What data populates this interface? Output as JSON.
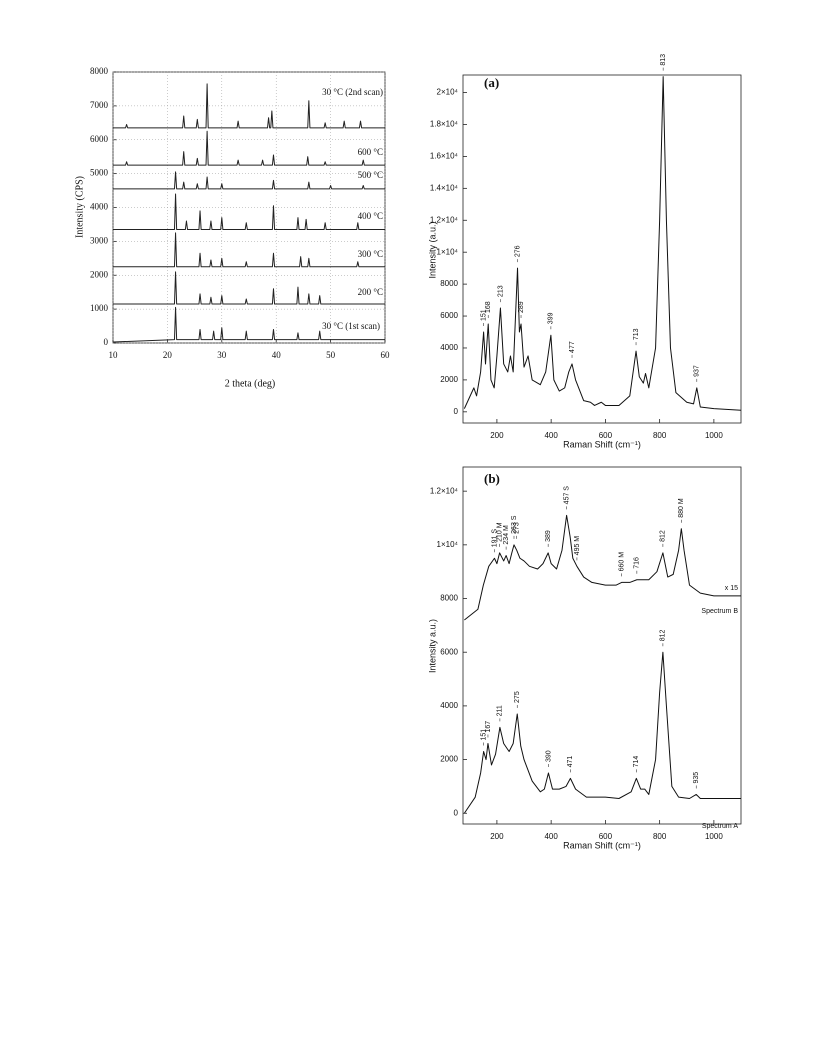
{
  "chart_data": [
    {
      "type": "line",
      "xlabel": "2 theta (deg)",
      "ylabel": "Intensity (CPS)",
      "xlim": [
        10,
        60
      ],
      "xticks": [
        10,
        20,
        30,
        40,
        50,
        60
      ],
      "ylim": [
        0,
        8000
      ],
      "yticks": [
        0,
        1000,
        2000,
        3000,
        4000,
        5000,
        6000,
        7000,
        8000
      ],
      "grid": true,
      "series": [
        {
          "name": "30 °C (2nd scan)",
          "color": "#222",
          "x": [
            10,
            12.3,
            12.5,
            12.7,
            22.8,
            23,
            23.2,
            25.3,
            25.5,
            25.7,
            27.1,
            27.3,
            27.5,
            32.8,
            33,
            33.2,
            38.4,
            38.6,
            38.8,
            39,
            39.2,
            39.4,
            45.8,
            46,
            46.2,
            48.8,
            49,
            49.2,
            52.3,
            52.5,
            52.7,
            55.3,
            55.5,
            55.7,
            60
          ],
          "values": [
            6350,
            6350,
            6450,
            6350,
            6350,
            6700,
            6350,
            6350,
            6600,
            6350,
            6350,
            7650,
            6350,
            6350,
            6550,
            6350,
            6350,
            6650,
            6350,
            6350,
            6850,
            6350,
            6350,
            7150,
            6350,
            6350,
            6500,
            6350,
            6350,
            6550,
            6350,
            6350,
            6550,
            6350,
            6350
          ]
        },
        {
          "name": "600 °C",
          "color": "#222",
          "x": [
            10,
            12.3,
            12.5,
            12.7,
            22.8,
            23,
            23.2,
            25.3,
            25.5,
            25.7,
            27.1,
            27.3,
            27.5,
            32.8,
            33,
            33.2,
            37.3,
            37.5,
            37.7,
            39.3,
            39.5,
            39.7,
            45.6,
            45.8,
            46,
            48.8,
            49,
            49.2,
            55.8,
            56,
            56.2,
            60
          ],
          "values": [
            5250,
            5250,
            5350,
            5250,
            5250,
            5650,
            5250,
            5250,
            5450,
            5250,
            5250,
            6250,
            5250,
            5250,
            5400,
            5250,
            5250,
            5400,
            5250,
            5250,
            5550,
            5250,
            5250,
            5500,
            5250,
            5250,
            5350,
            5250,
            5250,
            5400,
            5250,
            5250
          ]
        },
        {
          "name": "500 °C",
          "color": "#222",
          "x": [
            10,
            21.3,
            21.5,
            21.7,
            22.8,
            23,
            23.2,
            25.3,
            25.5,
            25.7,
            27.1,
            27.3,
            27.5,
            29.8,
            30,
            30.2,
            39.3,
            39.5,
            39.7,
            45.8,
            46,
            46.2,
            49.8,
            50,
            50.2,
            55.8,
            56,
            56.2,
            60
          ],
          "values": [
            4550,
            4550,
            5050,
            4550,
            4550,
            4750,
            4550,
            4550,
            4700,
            4550,
            4550,
            4900,
            4550,
            4550,
            4700,
            4550,
            4550,
            4800,
            4550,
            4550,
            4750,
            4550,
            4550,
            4650,
            4550,
            4550,
            4650,
            4550,
            4550
          ]
        },
        {
          "name": "400 °C",
          "color": "#222",
          "x": [
            10,
            21.3,
            21.5,
            21.7,
            23.3,
            23.5,
            23.7,
            25.8,
            26,
            26.2,
            27.8,
            28,
            28.2,
            29.8,
            30,
            30.2,
            34.3,
            34.5,
            34.7,
            39.3,
            39.5,
            39.7,
            43.8,
            44,
            44.2,
            45.3,
            45.5,
            45.7,
            48.8,
            49,
            49.2,
            54.8,
            55,
            55.2,
            60
          ],
          "values": [
            3350,
            3350,
            4400,
            3350,
            3350,
            3600,
            3350,
            3350,
            3900,
            3350,
            3350,
            3600,
            3350,
            3350,
            3700,
            3350,
            3350,
            3550,
            3350,
            3350,
            4050,
            3350,
            3350,
            3700,
            3350,
            3350,
            3650,
            3350,
            3350,
            3550,
            3350,
            3350,
            3550,
            3350,
            3350
          ]
        },
        {
          "name": "300 °C",
          "color": "#222",
          "x": [
            10,
            21.3,
            21.5,
            21.7,
            25.8,
            26,
            26.2,
            27.8,
            28,
            28.2,
            29.8,
            30,
            30.2,
            34.3,
            34.5,
            34.7,
            39.3,
            39.5,
            39.7,
            44.3,
            44.5,
            44.7,
            45.8,
            46,
            46.2,
            54.8,
            55,
            55.2,
            60
          ],
          "values": [
            2250,
            2250,
            3250,
            2250,
            2250,
            2650,
            2250,
            2250,
            2450,
            2250,
            2250,
            2500,
            2250,
            2250,
            2400,
            2250,
            2250,
            2650,
            2250,
            2250,
            2550,
            2250,
            2250,
            2500,
            2250,
            2250,
            2400,
            2250,
            2250
          ]
        },
        {
          "name": "200 °C",
          "color": "#222",
          "x": [
            10,
            21.3,
            21.5,
            21.7,
            25.8,
            26,
            26.2,
            27.8,
            28,
            28.2,
            29.8,
            30,
            30.2,
            34.3,
            34.5,
            34.7,
            39.3,
            39.5,
            39.7,
            43.8,
            44,
            44.2,
            45.8,
            46,
            46.2,
            47.8,
            48,
            48.2,
            60
          ],
          "values": [
            1150,
            1150,
            2100,
            1150,
            1150,
            1450,
            1150,
            1150,
            1350,
            1150,
            1150,
            1400,
            1150,
            1150,
            1300,
            1150,
            1150,
            1600,
            1150,
            1150,
            1650,
            1150,
            1150,
            1450,
            1150,
            1150,
            1400,
            1150,
            1150
          ]
        },
        {
          "name": "30 °C (1st scan)",
          "color": "#222",
          "x": [
            10,
            21.3,
            21.5,
            21.7,
            25.8,
            26,
            26.2,
            28.3,
            28.5,
            28.7,
            29.8,
            30,
            30.2,
            34.3,
            34.5,
            34.7,
            39.3,
            39.5,
            39.7,
            43.8,
            44,
            44.2,
            47.8,
            48,
            48.2,
            60
          ],
          "values": [
            30,
            100,
            1050,
            100,
            100,
            400,
            100,
            100,
            350,
            100,
            100,
            450,
            100,
            100,
            350,
            100,
            100,
            400,
            100,
            100,
            300,
            100,
            100,
            350,
            100,
            100
          ]
        }
      ]
    },
    {
      "type": "line",
      "title": "(a)",
      "xlabel": "Raman Shift (cm⁻¹)",
      "ylabel": "Intensity (a.u.)",
      "xlim": [
        75,
        1100
      ],
      "xticks": [
        200,
        400,
        600,
        800,
        1000
      ],
      "ylim": [
        -700,
        21100
      ],
      "yticks": [
        0,
        2000,
        4000,
        6000,
        8000,
        {
          "value": 10000,
          "label": "1×10⁴"
        },
        {
          "value": 12000,
          "label": "1.2×10⁴"
        },
        {
          "value": 14000,
          "label": "1.4×10⁴"
        },
        {
          "value": 16000,
          "label": "1.6×10⁴"
        },
        {
          "value": 18000,
          "label": "1.8×10⁴"
        },
        {
          "value": 20000,
          "label": "2×10⁴"
        }
      ],
      "grid": false,
      "series": [
        {
          "color": "#111",
          "x": [
            80,
            115,
            125,
            140,
            151,
            158,
            168,
            178,
            190,
            200,
            213,
            225,
            240,
            250,
            260,
            276,
            283,
            289,
            300,
            315,
            330,
            360,
            380,
            399,
            410,
            430,
            450,
            465,
            477,
            490,
            520,
            545,
            560,
            585,
            600,
            650,
            690,
            713,
            725,
            740,
            748,
            760,
            785,
            800,
            813,
            825,
            840,
            860,
            900,
            925,
            937,
            950,
            1000,
            1100
          ],
          "values": [
            200,
            1500,
            1000,
            2500,
            5000,
            3000,
            5500,
            2000,
            1500,
            3500,
            6500,
            3000,
            2500,
            3500,
            2500,
            9000,
            5000,
            5500,
            2800,
            3500,
            2000,
            1700,
            2500,
            4800,
            2000,
            1300,
            1500,
            2500,
            3000,
            2000,
            700,
            600,
            400,
            600,
            400,
            400,
            1000,
            3800,
            2200,
            1800,
            2400,
            1500,
            4000,
            12000,
            21000,
            12000,
            4000,
            1200,
            600,
            500,
            1500,
            300,
            200,
            100
          ],
          "peaks": [
            151,
            168,
            213,
            276,
            289,
            399,
            477,
            713,
            813,
            937
          ]
        }
      ]
    },
    {
      "type": "line",
      "title": "(b)",
      "xlabel": "Raman Shift (cm⁻¹)",
      "ylabel": "Intensity a.u.)",
      "xlim": [
        75,
        1100
      ],
      "xticks": [
        200,
        400,
        600,
        800,
        1000
      ],
      "ylim": [
        -400,
        12900
      ],
      "yticks": [
        0,
        2000,
        4000,
        6000,
        8000,
        {
          "value": 10000,
          "label": "1×10⁴"
        },
        {
          "value": 12000,
          "label": "1.2×10⁴"
        }
      ],
      "grid": false,
      "annotations": [
        "x 15"
      ],
      "series": [
        {
          "name": "Spectrum B",
          "color": "#111",
          "x": [
            80,
            130,
            150,
            170,
            191,
            200,
            210,
            225,
            234,
            245,
            255,
            263,
            273,
            285,
            300,
            320,
            350,
            370,
            389,
            400,
            420,
            440,
            457,
            470,
            480,
            495,
            520,
            550,
            600,
            640,
            660,
            690,
            716,
            760,
            790,
            812,
            830,
            850,
            870,
            880,
            890,
            910,
            950,
            1000,
            1100
          ],
          "values": [
            7200,
            7600,
            8500,
            9200,
            9500,
            9300,
            9700,
            9400,
            9600,
            9300,
            9700,
            10000,
            9800,
            9500,
            9400,
            9200,
            9100,
            9300,
            9700,
            9300,
            9100,
            9800,
            11100,
            10300,
            9500,
            9200,
            8800,
            8600,
            8500,
            8500,
            8600,
            8600,
            8700,
            8700,
            9000,
            9700,
            8800,
            8900,
            9800,
            10600,
            9800,
            8500,
            8200,
            8100,
            8100
          ],
          "peaks": [
            {
              "value": 191,
              "label": "191 S"
            },
            {
              "value": 210,
              "label": "210 M"
            },
            {
              "value": 234,
              "label": "234 M"
            },
            {
              "value": 263,
              "label": "263 S"
            },
            273,
            389,
            {
              "value": 457,
              "label": "457 S"
            },
            {
              "value": 495,
              "label": "495 M"
            },
            {
              "value": 660,
              "label": "660 M"
            },
            716,
            812,
            {
              "value": 880,
              "label": "880 M"
            }
          ]
        },
        {
          "name": "Spectrum A",
          "color": "#111",
          "x": [
            80,
            120,
            140,
            151,
            160,
            167,
            180,
            195,
            211,
            225,
            245,
            260,
            275,
            288,
            300,
            315,
            330,
            360,
            375,
            390,
            405,
            430,
            455,
            471,
            490,
            530,
            600,
            650,
            695,
            714,
            730,
            745,
            760,
            785,
            800,
            812,
            825,
            845,
            870,
            910,
            935,
            950,
            1000,
            1100
          ],
          "values": [
            0,
            600,
            1500,
            2300,
            2000,
            2600,
            1800,
            2200,
            3200,
            2600,
            2300,
            2600,
            3700,
            2500,
            2000,
            1600,
            1200,
            800,
            900,
            1500,
            900,
            900,
            1000,
            1300,
            900,
            600,
            600,
            550,
            800,
            1300,
            900,
            900,
            700,
            2000,
            4500,
            6000,
            4000,
            1000,
            600,
            550,
            700,
            550,
            550,
            550
          ],
          "peaks": [
            151,
            167,
            211,
            275,
            390,
            471,
            714,
            812,
            935
          ]
        }
      ]
    }
  ]
}
